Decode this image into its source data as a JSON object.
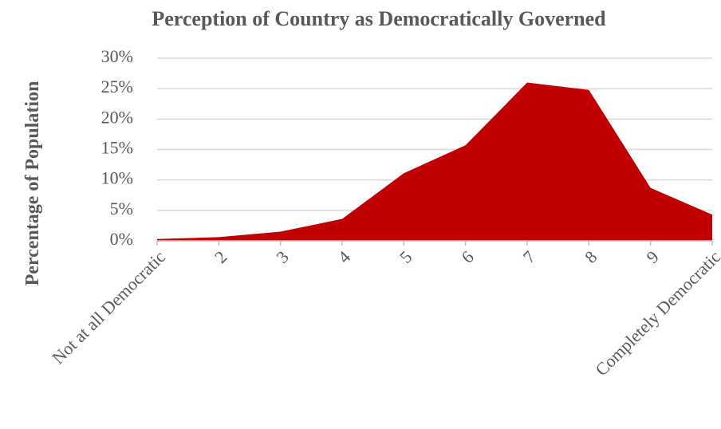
{
  "chart_data": {
    "type": "area",
    "title": "Perception of Country as Democratically Governed",
    "y_label": "Percentage of Population",
    "categories": [
      "Not at all Democratic",
      "2",
      "3",
      "4",
      "5",
      "6",
      "7",
      "8",
      "9",
      "Completely Democratic"
    ],
    "values": [
      0.3,
      0.6,
      1.5,
      3.6,
      11.1,
      15.7,
      26.0,
      24.8,
      8.7,
      4.3
    ],
    "color": "#c00000",
    "ylim": [
      0,
      30
    ],
    "yticks": [
      {
        "value": 0,
        "label": "0%"
      },
      {
        "value": 5,
        "label": "5%"
      },
      {
        "value": 10,
        "label": "10%"
      },
      {
        "value": 15,
        "label": "15%"
      },
      {
        "value": 20,
        "label": "20%"
      },
      {
        "value": 25,
        "label": "25%"
      },
      {
        "value": 30,
        "label": "30%"
      }
    ],
    "grid": true
  }
}
